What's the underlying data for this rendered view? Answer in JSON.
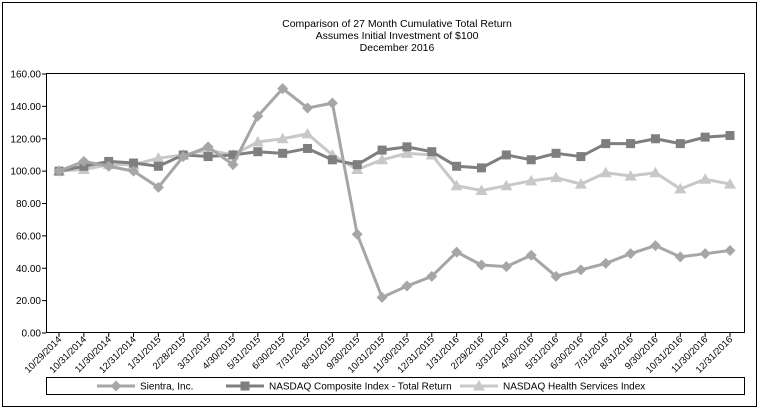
{
  "chart_data": {
    "type": "line",
    "title": [
      "Comparison of 27 Month Cumulative Total Return",
      "Assumes Initial Investment of $100",
      "December 2016"
    ],
    "xlabel": "",
    "ylabel": "",
    "ylim": [
      0,
      160
    ],
    "yticks": [
      "0.00",
      "20.00",
      "40.00",
      "60.00",
      "80.00",
      "100.00",
      "120.00",
      "140.00",
      "160.00"
    ],
    "grid": false,
    "legend_position": "bottom",
    "categories": [
      "10/29/2014",
      "10/31/2014",
      "11/30/2014",
      "12/31/2014",
      "1/31/2015",
      "2/28/2015",
      "3/31/2015",
      "4/30/2015",
      "5/31/2015",
      "6/30/2015",
      "7/31/2015",
      "8/31/2015",
      "9/30/2015",
      "10/31/2015",
      "11/30/2015",
      "12/31/2015",
      "1/31/2016",
      "2/29/2016",
      "3/31/2016",
      "4/30/2016",
      "5/31/2016",
      "6/30/2016",
      "7/31/2016",
      "8/31/2016",
      "9/30/2016",
      "10/31/2016",
      "11/30/2016",
      "12/31/2016"
    ],
    "series": [
      {
        "name": "Sientra, Inc.",
        "marker": "diamond",
        "color": "#a6a6a6",
        "values": [
          100,
          106,
          103,
          100,
          90,
          109,
          115,
          104,
          134,
          151,
          139,
          142,
          61,
          22,
          29,
          35,
          50,
          42,
          41,
          48,
          35,
          39,
          43,
          49,
          54,
          47,
          49,
          51
        ]
      },
      {
        "name": "NASDAQ Composite Index - Total Return",
        "marker": "square",
        "color": "#7f7f7f",
        "values": [
          100,
          103,
          106,
          105,
          103,
          110,
          109,
          110,
          112,
          111,
          114,
          107,
          104,
          113,
          115,
          112,
          103,
          102,
          110,
          107,
          111,
          109,
          117,
          117,
          120,
          117,
          121,
          122
        ]
      },
      {
        "name": "NASDAQ Health Services Index",
        "marker": "triangle",
        "color": "#c8c8c8",
        "values": [
          100,
          101,
          104,
          104,
          108,
          110,
          113,
          110,
          118,
          120,
          123,
          110,
          101,
          107,
          111,
          110,
          91,
          88,
          91,
          94,
          96,
          92,
          99,
          97,
          99,
          89,
          95,
          92
        ]
      }
    ]
  }
}
